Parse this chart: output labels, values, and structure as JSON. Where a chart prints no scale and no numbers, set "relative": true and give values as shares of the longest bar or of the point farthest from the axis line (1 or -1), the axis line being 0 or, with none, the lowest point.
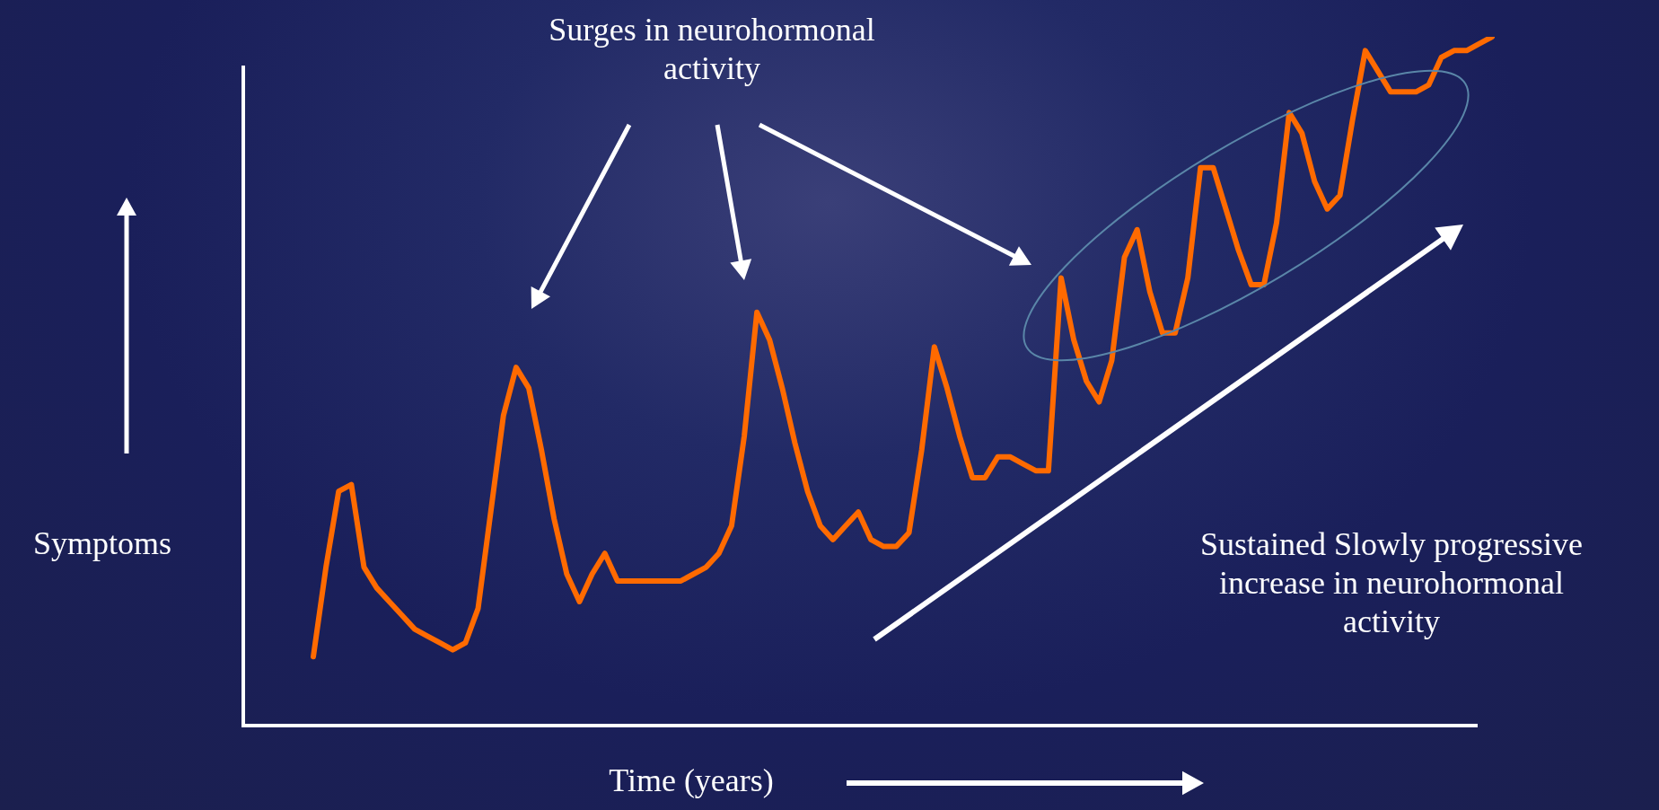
{
  "chart_data": {
    "type": "line",
    "relative": true,
    "xlabel": "Time (years)",
    "ylabel": "Symptoms",
    "annotations": [
      "Surges in neurohormonal activity",
      "Sustained Slowly progressive increase in neurohormonal activity"
    ],
    "marker": "none",
    "categories": [
      null,
      null,
      null,
      null,
      null,
      null,
      null,
      null,
      null,
      null,
      null,
      null,
      null,
      null,
      null,
      null,
      null,
      null,
      null,
      null,
      null,
      null,
      null,
      null,
      null,
      null,
      null,
      null,
      null,
      null,
      null,
      null,
      null,
      null,
      null,
      null,
      null,
      null,
      null,
      null,
      null,
      null,
      null,
      null,
      null,
      null,
      null,
      null,
      null,
      null,
      null,
      null,
      null,
      null,
      null,
      null,
      null,
      null,
      null,
      null,
      null,
      null,
      null,
      null,
      null,
      null,
      null,
      null,
      null,
      null,
      null,
      null,
      null,
      null,
      null,
      null,
      null,
      null,
      null,
      null,
      null,
      null,
      null,
      null,
      null,
      null,
      null,
      null,
      null,
      null,
      null,
      null,
      null,
      null
    ],
    "series": [
      {
        "color": "#ff6a00",
        "values": [
          0.1,
          0.23,
          0.34,
          0.35,
          0.23,
          0.2,
          0.18,
          0.16,
          0.14,
          0.13,
          0.12,
          0.11,
          0.12,
          0.17,
          0.31,
          0.45,
          0.52,
          0.49,
          0.4,
          0.3,
          0.22,
          0.18,
          0.22,
          0.25,
          0.21,
          0.21,
          0.21,
          0.21,
          0.21,
          0.21,
          0.22,
          0.23,
          0.25,
          0.29,
          0.42,
          0.6,
          0.56,
          0.49,
          0.41,
          0.34,
          0.29,
          0.27,
          0.29,
          0.31,
          0.27,
          0.26,
          0.26,
          0.28,
          0.4,
          0.55,
          0.49,
          0.42,
          0.36,
          0.36,
          0.39,
          0.39,
          0.38,
          0.37,
          0.37,
          0.65,
          0.56,
          0.5,
          0.47,
          0.53,
          0.68,
          0.72,
          0.63,
          0.57,
          0.57,
          0.65,
          0.81,
          0.81,
          0.75,
          0.69,
          0.64,
          0.64,
          0.73,
          0.89,
          0.86,
          0.79,
          0.75,
          0.77,
          0.88,
          0.98,
          0.95,
          0.92,
          0.92,
          0.92,
          0.93,
          0.97,
          0.98,
          0.98,
          0.99,
          1
        ]
      }
    ]
  }
}
